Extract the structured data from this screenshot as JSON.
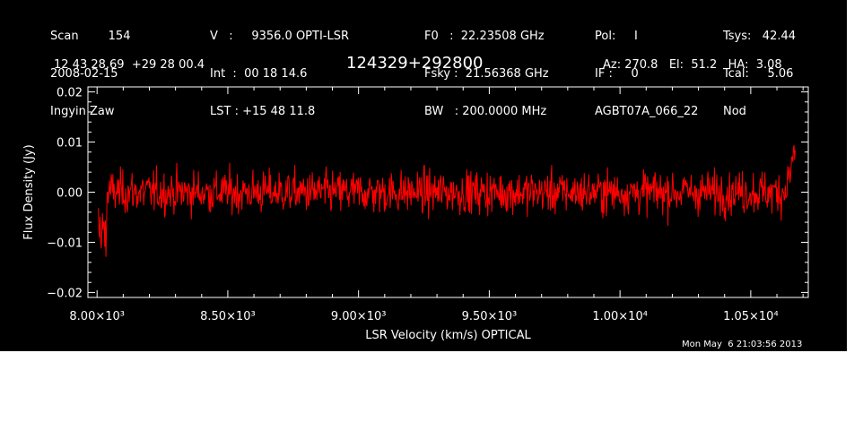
{
  "header": {
    "col1": [
      "Scan        154",
      "2008-02-15",
      "Ingyin Zaw"
    ],
    "col2": [
      "V   :     9356.0 OPTI-LSR",
      "Int  :  00 18 14.6",
      "LST : +15 48 11.8"
    ],
    "col3": [
      "F0   :  22.23508 GHz",
      "Fsky :  21.56368 GHz",
      "BW   : 200.0000 MHz"
    ],
    "col4": [
      "Pol:     I",
      "IF :     0",
      "AGBT07A_066_22"
    ],
    "col5": [
      "Tsys:   42.44",
      "Tcal:     5.06",
      "Nod"
    ],
    "coords": "12 43 28.69  +29 28 00.4",
    "source_name": "124329+292800",
    "azel": "Az: 270.8   El:  51.2   HA:  3.08",
    "timestamp": "Mon May  6 21:03:56 2013"
  },
  "colors": {
    "background": "#000000",
    "axes": "#ffffff",
    "trace": "#ff0000"
  },
  "chart_data": {
    "type": "line",
    "xlabel": "LSR Velocity (km/s) OPTICAL",
    "ylabel": "Flux Density (Jy)",
    "xlim": [
      7965,
      10720
    ],
    "ylim": [
      -0.021,
      0.021
    ],
    "xticks": [
      8000,
      8500,
      9000,
      9500,
      10000,
      10500
    ],
    "xtick_labels": [
      "8.00×10³",
      "8.50×10³",
      "9.00×10³",
      "9.50×10³",
      "1.00×10⁴",
      "1.05×10⁴"
    ],
    "yticks": [
      -0.02,
      -0.01,
      0.0,
      0.01,
      0.02
    ],
    "ytick_labels": [
      "−0.02",
      "−0.01",
      "0.00",
      "0.01",
      "0.02"
    ],
    "series": [
      {
        "x_start": 8005,
        "x_end": 10670,
        "n_points": 1200,
        "mean": 0.0,
        "noise_rms": 0.004,
        "features": [
          {
            "x": 8015,
            "y": -0.014,
            "note_free": true
          },
          {
            "x": 10665,
            "y": 0.0145,
            "note_free": true
          }
        ]
      }
    ]
  }
}
